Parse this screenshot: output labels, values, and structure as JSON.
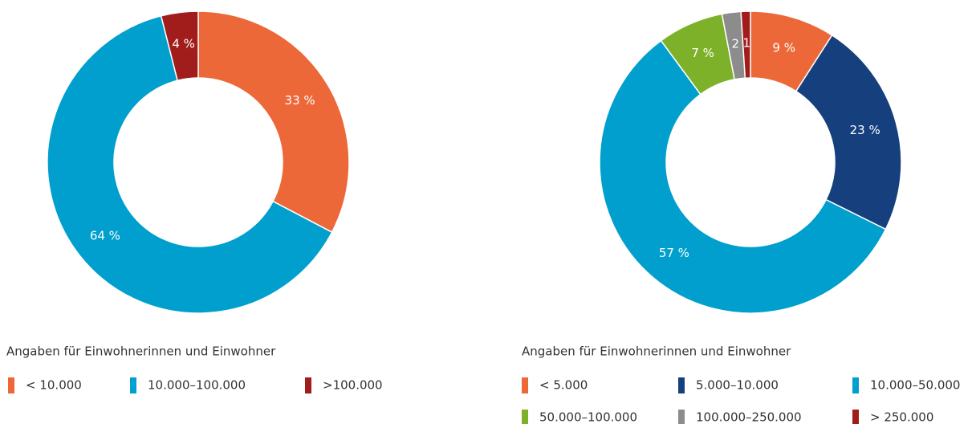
{
  "chart_data": [
    {
      "type": "pie",
      "categories": [
        "< 10.000",
        "10.000–100.000",
        ">100.000"
      ],
      "values": [
        33,
        64,
        4
      ],
      "value_labels": [
        "33 %",
        "64 %",
        "4 %"
      ],
      "colors": [
        "#ec6839",
        "#009fcd",
        "#a01d1c"
      ],
      "note": "Angaben für Einwohnerinnen und Einwohner"
    },
    {
      "type": "pie",
      "categories": [
        "< 5.000",
        "5.000–10.000",
        "10.000–50.000",
        "50.000–100.000",
        "100.000–250.000",
        "> 250.000"
      ],
      "values": [
        9,
        23,
        57,
        7,
        2,
        1
      ],
      "value_labels": [
        "9 %",
        "23 %",
        "57 %",
        "7 %",
        "2",
        "1"
      ],
      "colors": [
        "#ec6839",
        "#163f7e",
        "#009fcd",
        "#7eb12a",
        "#8c8c8c",
        "#a01d1c"
      ],
      "note": "Angaben für Einwohnerinnen und Einwohner"
    }
  ]
}
